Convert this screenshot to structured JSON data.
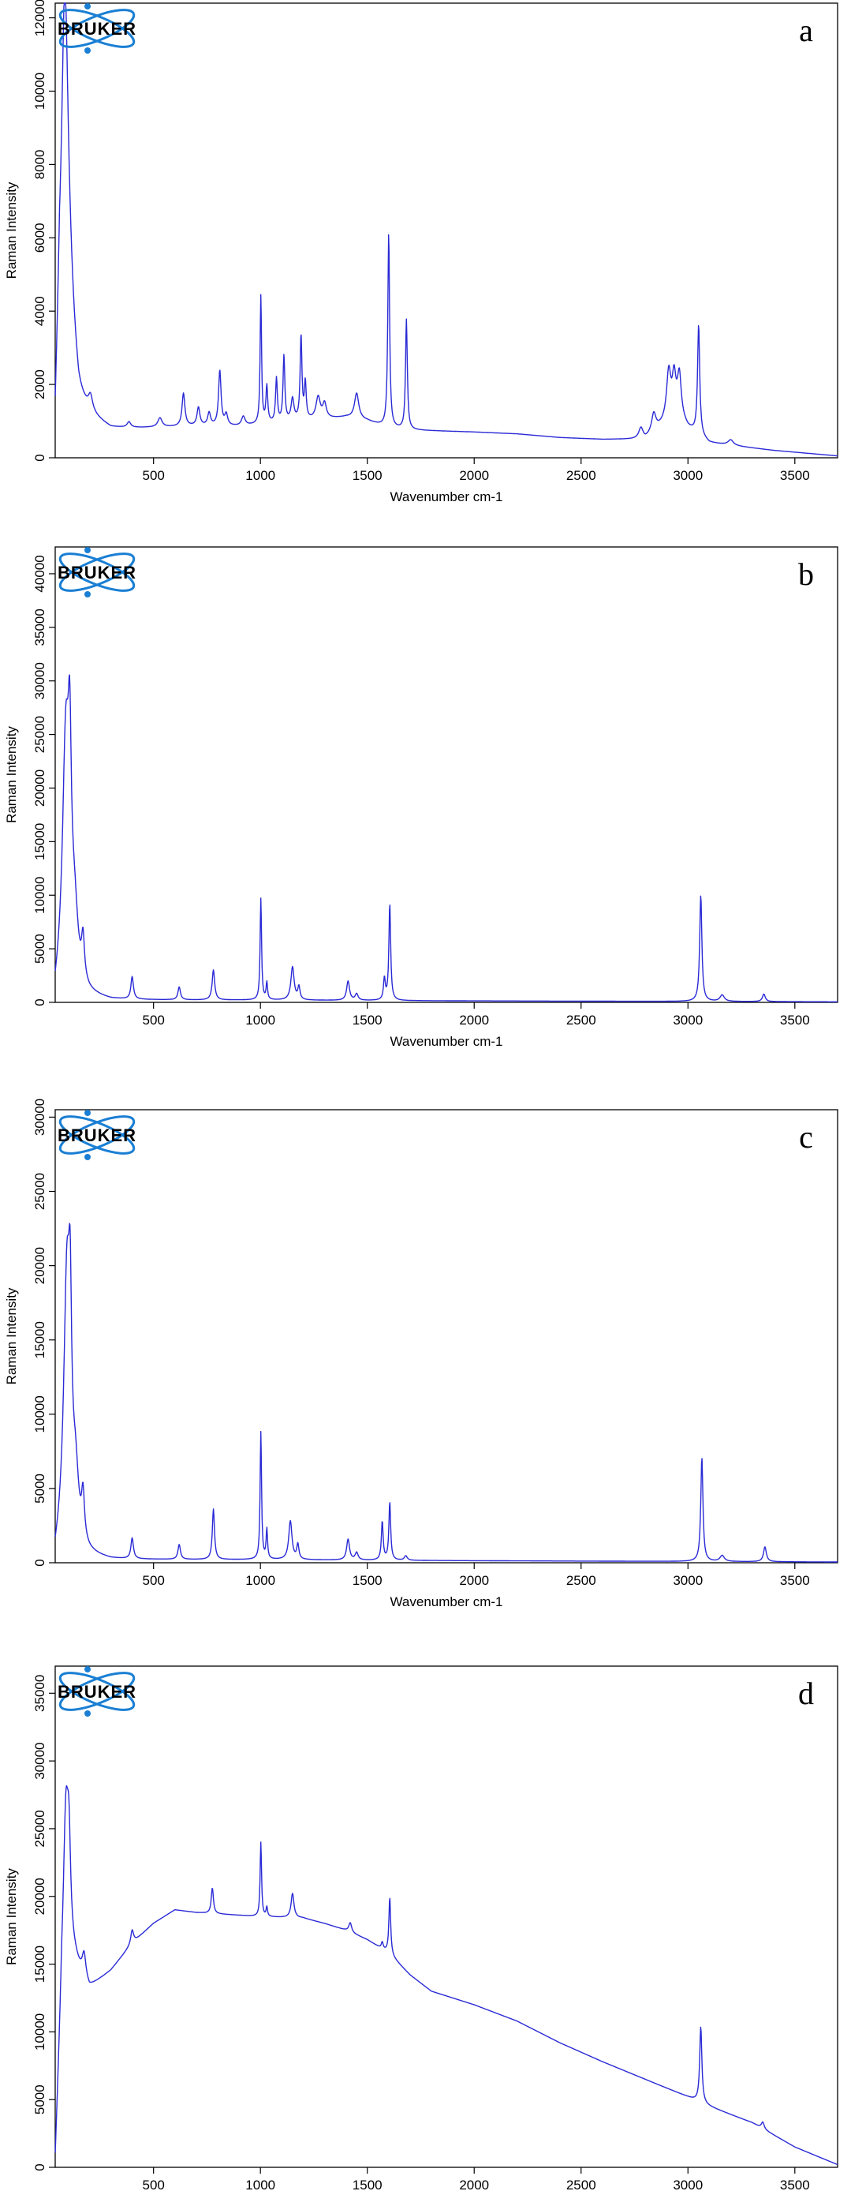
{
  "logo": {
    "text": "BRUKER",
    "color": "#1a7fd4"
  },
  "colors": {
    "spectrum": "#2a2ad6",
    "axis": "#000000"
  },
  "chart_data": [
    {
      "panel_label": "a",
      "type": "line",
      "xlabel": "Wavenumber cm-1",
      "ylabel": "Raman Intensity",
      "xlim": [
        40,
        3700
      ],
      "ylim": [
        0,
        12400
      ],
      "xticks": [
        500,
        1000,
        1500,
        2000,
        2500,
        3000,
        3500
      ],
      "yticks": [
        0,
        2000,
        4000,
        6000,
        8000,
        10000,
        12000
      ],
      "baseline": [
        [
          40,
          0
        ],
        [
          60,
          3000
        ],
        [
          100,
          2500
        ],
        [
          150,
          1100
        ],
        [
          200,
          1000
        ],
        [
          300,
          750
        ],
        [
          500,
          800
        ],
        [
          700,
          850
        ],
        [
          900,
          850
        ],
        [
          1000,
          900
        ],
        [
          1200,
          1000
        ],
        [
          1400,
          1100
        ],
        [
          1500,
          1000
        ],
        [
          1600,
          800
        ],
        [
          1700,
          750
        ],
        [
          2000,
          700
        ],
        [
          2200,
          650
        ],
        [
          2400,
          550
        ],
        [
          2600,
          500
        ],
        [
          2800,
          500
        ],
        [
          2950,
          1200
        ],
        [
          3000,
          800
        ],
        [
          3100,
          400
        ],
        [
          3400,
          200
        ],
        [
          3700,
          50
        ]
      ],
      "peaks": [
        [
          85,
          8500,
          18
        ],
        [
          100,
          2000,
          35
        ],
        [
          205,
          400,
          12
        ],
        [
          385,
          150,
          10
        ],
        [
          530,
          250,
          12
        ],
        [
          640,
          900,
          8
        ],
        [
          710,
          500,
          8
        ],
        [
          760,
          350,
          8
        ],
        [
          810,
          1500,
          7
        ],
        [
          840,
          300,
          8
        ],
        [
          920,
          250,
          10
        ],
        [
          1002,
          3500,
          4
        ],
        [
          1030,
          1000,
          5
        ],
        [
          1075,
          1200,
          5
        ],
        [
          1110,
          1800,
          5
        ],
        [
          1150,
          600,
          8
        ],
        [
          1190,
          2300,
          5
        ],
        [
          1210,
          1000,
          5
        ],
        [
          1270,
          600,
          12
        ],
        [
          1300,
          400,
          10
        ],
        [
          1450,
          700,
          12
        ],
        [
          1600,
          5300,
          5
        ],
        [
          1683,
          3000,
          5
        ],
        [
          2780,
          300,
          12
        ],
        [
          2840,
          500,
          12
        ],
        [
          2910,
          1300,
          12
        ],
        [
          2935,
          1000,
          10
        ],
        [
          2960,
          1100,
          10
        ],
        [
          3050,
          3000,
          6
        ],
        [
          3200,
          150,
          15
        ]
      ]
    },
    {
      "panel_label": "b",
      "type": "line",
      "xlabel": "Wavenumber cm-1",
      "ylabel": "Raman Intensity",
      "xlim": [
        40,
        3700
      ],
      "ylim": [
        0,
        42500
      ],
      "xticks": [
        500,
        1000,
        1500,
        2000,
        2500,
        3000,
        3500
      ],
      "yticks": [
        0,
        5000,
        10000,
        15000,
        20000,
        25000,
        30000,
        35000,
        40000
      ],
      "baseline": [
        [
          40,
          0
        ],
        [
          80,
          3000
        ],
        [
          150,
          1000
        ],
        [
          200,
          500
        ],
        [
          300,
          200
        ],
        [
          1000,
          200
        ],
        [
          1700,
          150
        ],
        [
          3700,
          50
        ]
      ],
      "peaks": [
        [
          90,
          21000,
          18
        ],
        [
          108,
          15000,
          9
        ],
        [
          130,
          5500,
          20
        ],
        [
          170,
          3800,
          8
        ],
        [
          400,
          2100,
          7
        ],
        [
          620,
          1200,
          7
        ],
        [
          780,
          2800,
          7
        ],
        [
          1002,
          9500,
          4
        ],
        [
          1030,
          1600,
          4
        ],
        [
          1150,
          3100,
          9
        ],
        [
          1180,
          1200,
          6
        ],
        [
          1410,
          1800,
          8
        ],
        [
          1450,
          600,
          8
        ],
        [
          1580,
          2000,
          5
        ],
        [
          1605,
          9000,
          5
        ],
        [
          3060,
          9900,
          6
        ],
        [
          3160,
          600,
          12
        ],
        [
          3355,
          700,
          8
        ]
      ]
    },
    {
      "panel_label": "c",
      "type": "line",
      "xlabel": "Wavenumber cm-1",
      "ylabel": "Raman Intensity",
      "xlim": [
        40,
        3700
      ],
      "ylim": [
        0,
        30500
      ],
      "xticks": [
        500,
        1000,
        1500,
        2000,
        2500,
        3000,
        3500
      ],
      "yticks": [
        0,
        5000,
        10000,
        15000,
        20000,
        25000,
        30000
      ],
      "baseline": [
        [
          40,
          0
        ],
        [
          80,
          2000
        ],
        [
          150,
          700
        ],
        [
          200,
          400
        ],
        [
          300,
          200
        ],
        [
          1000,
          200
        ],
        [
          1700,
          150
        ],
        [
          3700,
          50
        ]
      ],
      "peaks": [
        [
          95,
          17000,
          17
        ],
        [
          110,
          10000,
          8
        ],
        [
          135,
          4000,
          18
        ],
        [
          170,
          3000,
          8
        ],
        [
          400,
          1400,
          7
        ],
        [
          620,
          1000,
          7
        ],
        [
          780,
          3400,
          6
        ],
        [
          1002,
          8600,
          4
        ],
        [
          1030,
          2000,
          4
        ],
        [
          1140,
          2600,
          9
        ],
        [
          1175,
          1000,
          6
        ],
        [
          1410,
          1400,
          8
        ],
        [
          1450,
          500,
          8
        ],
        [
          1570,
          2600,
          5
        ],
        [
          1605,
          3900,
          5
        ],
        [
          1680,
          300,
          8
        ],
        [
          3065,
          7000,
          6
        ],
        [
          3160,
          400,
          12
        ],
        [
          3360,
          1000,
          8
        ]
      ]
    },
    {
      "panel_label": "d",
      "type": "line",
      "xlabel": "Wavenumber cm-1",
      "ylabel": "Raman Intensity",
      "xlim": [
        40,
        3700
      ],
      "ylim": [
        0,
        37000
      ],
      "xticks": [
        500,
        1000,
        1500,
        2000,
        2500,
        3000,
        3500
      ],
      "yticks": [
        0,
        5000,
        10000,
        15000,
        20000,
        25000,
        30000,
        35000
      ],
      "baseline": [
        [
          40,
          0
        ],
        [
          70,
          12000
        ],
        [
          100,
          16000
        ],
        [
          150,
          14500
        ],
        [
          200,
          13200
        ],
        [
          300,
          14500
        ],
        [
          400,
          16500
        ],
        [
          500,
          18000
        ],
        [
          600,
          19000
        ],
        [
          700,
          18800
        ],
        [
          800,
          18700
        ],
        [
          900,
          18600
        ],
        [
          1000,
          18500
        ],
        [
          1200,
          18400
        ],
        [
          1300,
          18000
        ],
        [
          1400,
          17500
        ],
        [
          1500,
          16800
        ],
        [
          1600,
          15800
        ],
        [
          1700,
          14200
        ],
        [
          1800,
          13000
        ],
        [
          2000,
          12000
        ],
        [
          2200,
          10800
        ],
        [
          2400,
          9200
        ],
        [
          2600,
          7800
        ],
        [
          2800,
          6500
        ],
        [
          3000,
          5200
        ],
        [
          3100,
          4500
        ],
        [
          3300,
          3300
        ],
        [
          3500,
          1500
        ],
        [
          3700,
          200
        ]
      ],
      "peaks": [
        [
          90,
          12000,
          15
        ],
        [
          105,
          5000,
          8
        ],
        [
          175,
          1700,
          10
        ],
        [
          400,
          1000,
          8
        ],
        [
          775,
          1900,
          6
        ],
        [
          1002,
          5500,
          4
        ],
        [
          1030,
          700,
          4
        ],
        [
          1150,
          1800,
          8
        ],
        [
          1420,
          700,
          8
        ],
        [
          1570,
          500,
          5
        ],
        [
          1605,
          4200,
          5
        ],
        [
          3060,
          5600,
          6
        ],
        [
          3350,
          500,
          8
        ]
      ]
    }
  ]
}
